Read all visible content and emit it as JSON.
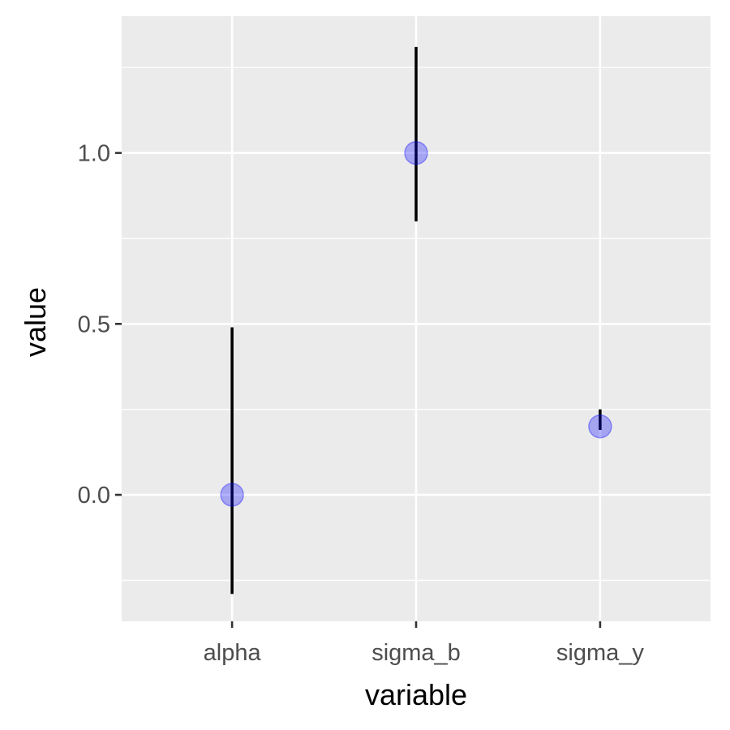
{
  "chart_data": {
    "type": "scatter",
    "title": "",
    "xlabel": "variable",
    "ylabel": "value",
    "categories": [
      "alpha",
      "sigma_b",
      "sigma_y"
    ],
    "series": [
      {
        "values": [
          0.0,
          1.0,
          0.2
        ],
        "lower": [
          -0.29,
          0.8,
          0.19
        ],
        "upper": [
          0.49,
          1.31,
          0.25
        ]
      }
    ],
    "ylim": [
      -0.37,
      1.4
    ],
    "y_ticks": [
      0.0,
      0.5,
      1.0
    ],
    "y_tick_labels": [
      "0.0",
      "0.5",
      "1.0"
    ],
    "y_minor_ticks": [
      -0.25,
      0.25,
      0.75,
      1.25
    ],
    "grid": true,
    "legend": "none",
    "colors": {
      "panel_background": "#ebebeb",
      "grid": "#ffffff",
      "point_fill": "#0000ff",
      "point_fill_opacity": 0.3,
      "errorbar": "#000000"
    }
  }
}
